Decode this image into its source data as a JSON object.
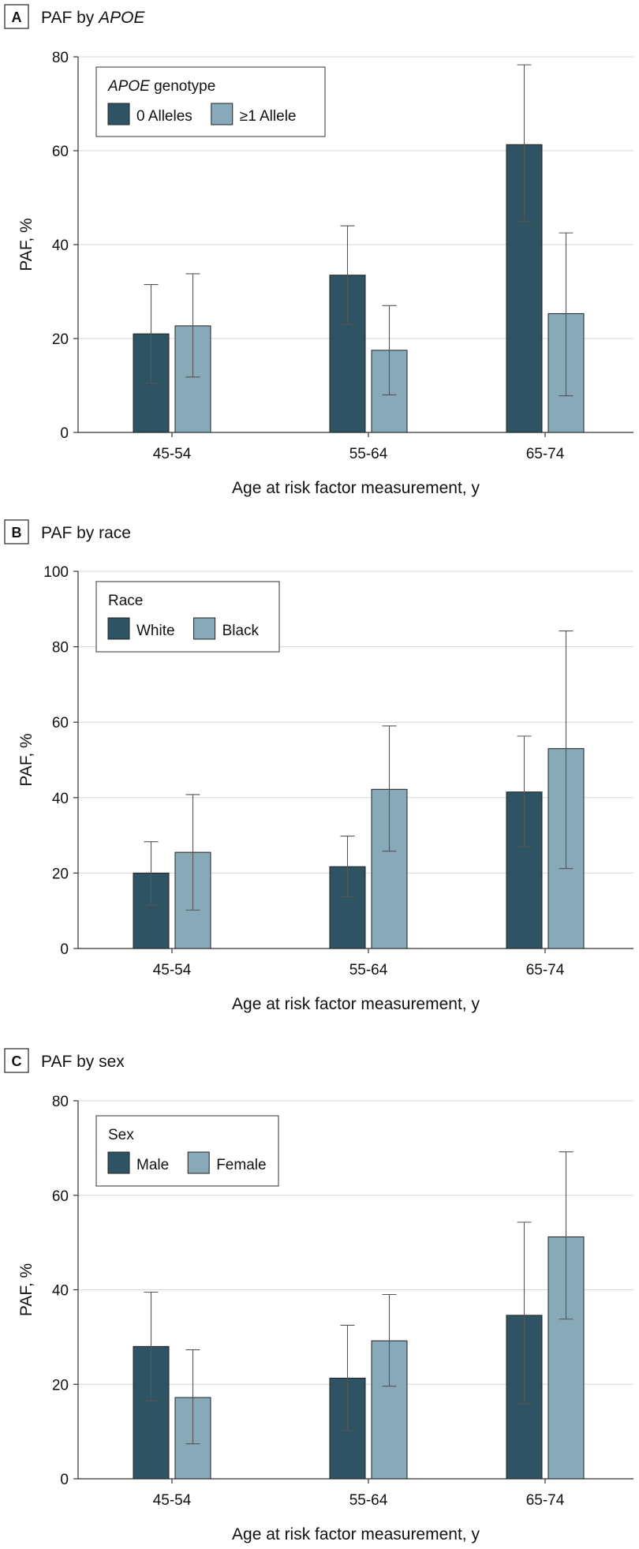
{
  "colors": {
    "dark": "#2e5463",
    "light": "#87a9b8"
  },
  "chart_data": [
    {
      "type": "bar",
      "id": "A",
      "letter": "A",
      "title": "PAF by ",
      "title_italic": "APOE",
      "xlabel": "Age at risk factor measurement, y",
      "ylabel": "PAF, %",
      "ylim": [
        0,
        80
      ],
      "yticks": [
        0,
        20,
        40,
        60,
        80
      ],
      "categories": [
        "45-54",
        "55-64",
        "65-74"
      ],
      "legend_title": "",
      "legend_title_italic": "APOE",
      "legend_title_suffix": " genotype",
      "series": [
        {
          "name": "0 Alleles",
          "values": [
            21,
            33.5,
            61.3
          ],
          "lower": [
            10.5,
            23,
            45
          ],
          "upper": [
            31.5,
            44,
            78.3
          ]
        },
        {
          "name": "≥1 Allele",
          "values": [
            22.7,
            17.5,
            25.3
          ],
          "lower": [
            11.8,
            8,
            7.8
          ],
          "upper": [
            33.8,
            27,
            42.5
          ]
        }
      ]
    },
    {
      "type": "bar",
      "id": "B",
      "letter": "B",
      "title": "PAF by race",
      "title_italic": "",
      "xlabel": "Age at risk factor measurement, y",
      "ylabel": "PAF, %",
      "ylim": [
        0,
        100
      ],
      "yticks": [
        0,
        20,
        40,
        60,
        80,
        100
      ],
      "categories": [
        "45-54",
        "55-64",
        "65-74"
      ],
      "legend_title": "Race",
      "legend_title_italic": "",
      "legend_title_suffix": "",
      "series": [
        {
          "name": "White",
          "values": [
            20,
            21.7,
            41.5
          ],
          "lower": [
            11.5,
            13.7,
            27
          ],
          "upper": [
            28.3,
            29.8,
            56.3
          ]
        },
        {
          "name": "Black",
          "values": [
            25.5,
            42.2,
            53
          ],
          "lower": [
            10.2,
            25.8,
            21.2
          ],
          "upper": [
            40.8,
            59,
            84.2
          ]
        }
      ]
    },
    {
      "type": "bar",
      "id": "C",
      "letter": "C",
      "title": "PAF by sex",
      "title_italic": "",
      "xlabel": "Age at risk factor measurement, y",
      "ylabel": "PAF, %",
      "ylim": [
        0,
        80
      ],
      "yticks": [
        0,
        20,
        40,
        60,
        80
      ],
      "categories": [
        "45-54",
        "55-64",
        "65-74"
      ],
      "legend_title": "Sex",
      "legend_title_italic": "",
      "legend_title_suffix": "",
      "series": [
        {
          "name": "Male",
          "values": [
            28,
            21.3,
            34.6
          ],
          "lower": [
            16.5,
            10.2,
            15.9
          ],
          "upper": [
            39.5,
            32.5,
            54.3
          ]
        },
        {
          "name": "Female",
          "values": [
            17.2,
            29.2,
            51.2
          ],
          "lower": [
            7.4,
            19.6,
            33.8
          ],
          "upper": [
            27.3,
            39,
            69.2
          ]
        }
      ]
    }
  ]
}
